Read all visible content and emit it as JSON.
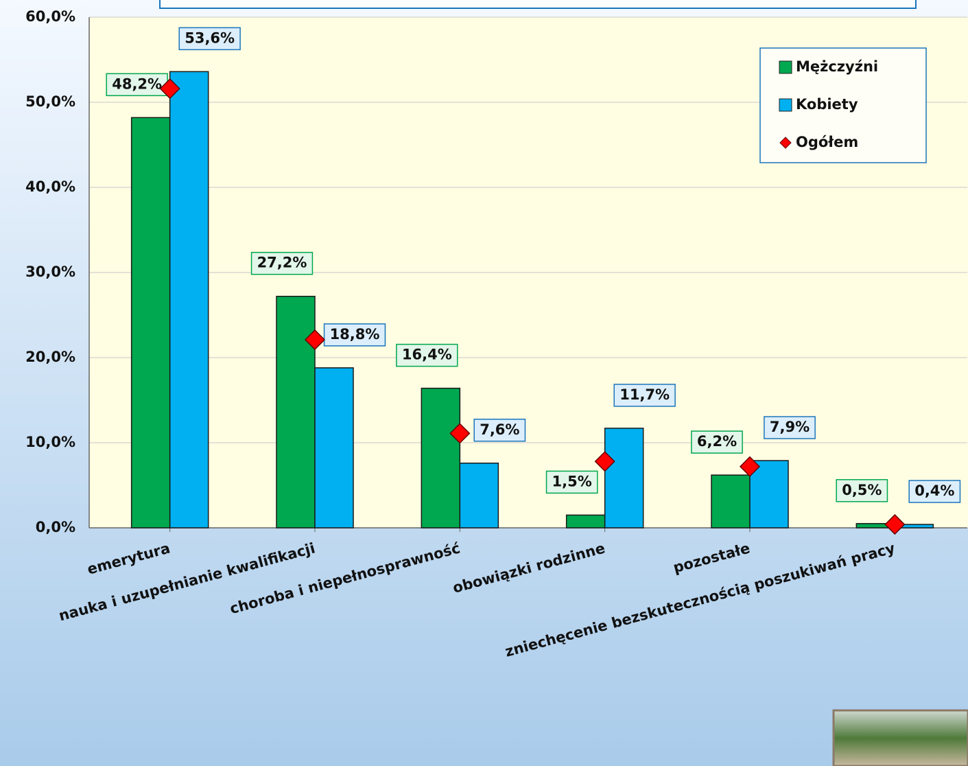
{
  "chart_data": {
    "type": "bar",
    "categories": [
      "emerytura",
      "nauka i uzupełnianie kwalifikacji",
      "choroba i niepełnosprawność",
      "obowiązki rodzinne",
      "pozostałe",
      "zniechęcenie bezskutecznością poszukiwań pracy"
    ],
    "series": [
      {
        "name": "Mężczyźni",
        "color": "#00a84f",
        "values": [
          48.2,
          27.2,
          16.4,
          1.5,
          6.2,
          0.5
        ],
        "value_labels": [
          "48,2%",
          "27,2%",
          "16,4%",
          "1,5%",
          "6,2%",
          "0,5%"
        ]
      },
      {
        "name": "Kobiety",
        "color": "#00b0f0",
        "values": [
          53.6,
          18.8,
          7.6,
          11.7,
          7.9,
          0.4
        ],
        "value_labels": [
          "53,6%",
          "18,8%",
          "7,6%",
          "11,7%",
          "7,9%",
          "0,4%"
        ]
      },
      {
        "name": "Ogółem",
        "type": "scatter",
        "marker": "diamond",
        "color": "#ff0000",
        "values": [
          51.6,
          22.1,
          11.1,
          7.8,
          7.2,
          0.4
        ]
      }
    ],
    "ylim": [
      0,
      60
    ],
    "yticks": [
      {
        "value": 0,
        "label": "0,0%"
      },
      {
        "value": 10,
        "label": "10,0%"
      },
      {
        "value": 20,
        "label": "20,0%"
      },
      {
        "value": 30,
        "label": "30,0%"
      },
      {
        "value": 40,
        "label": "40,0%"
      },
      {
        "value": 50,
        "label": "50,0%"
      },
      {
        "value": 60,
        "label": "60,0%"
      }
    ],
    "grid": true,
    "legend": "top-right"
  }
}
